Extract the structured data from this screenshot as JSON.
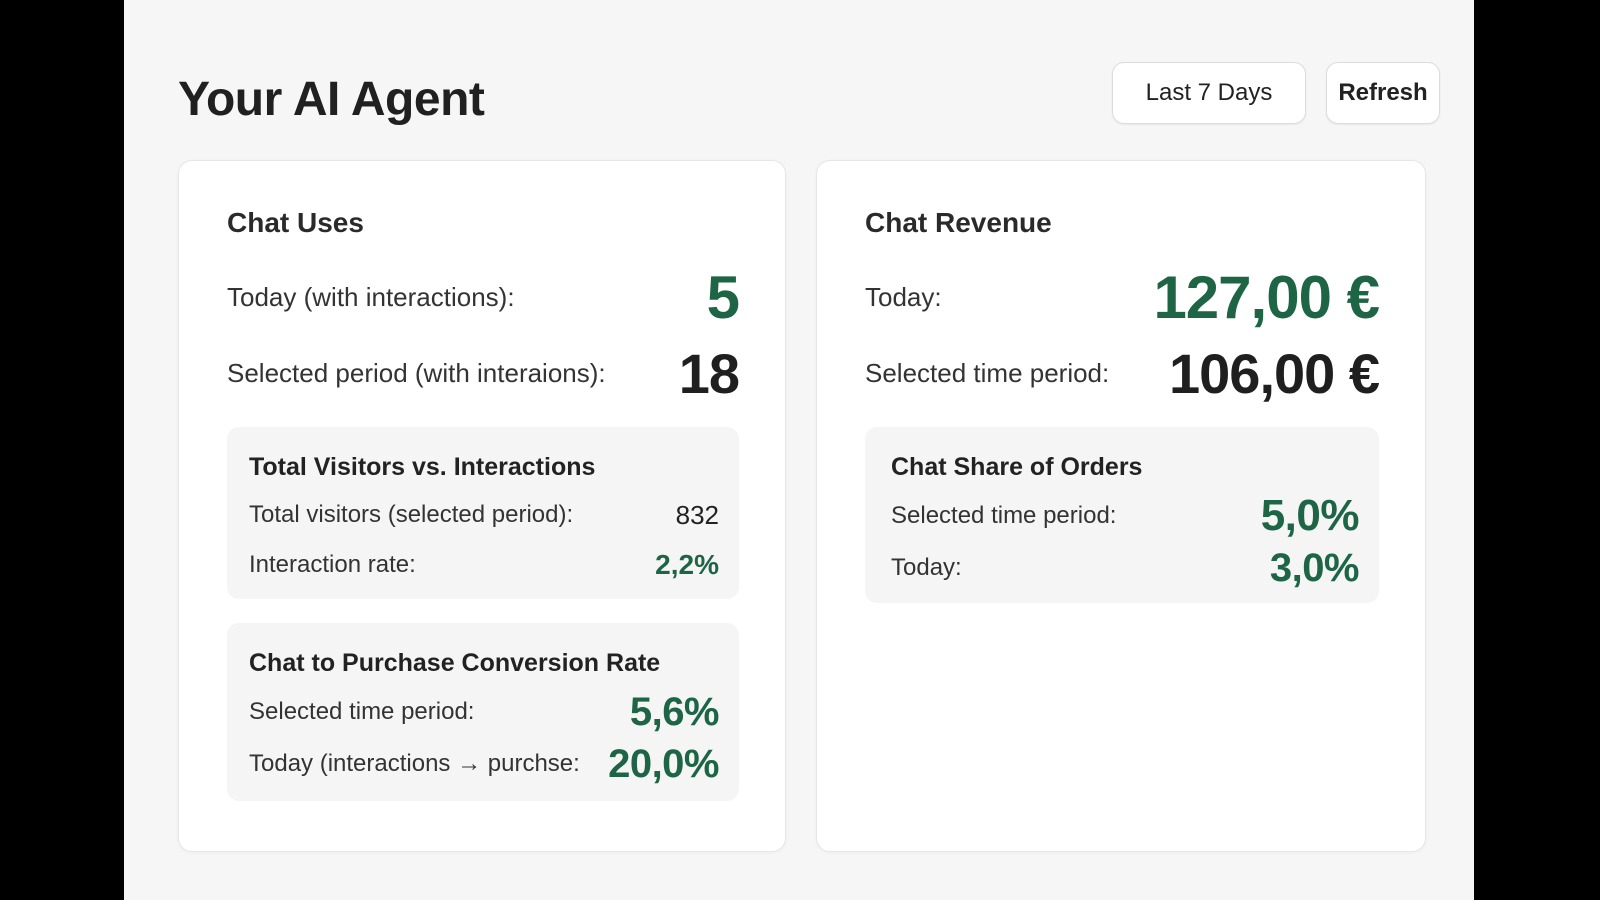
{
  "header": {
    "title": "Your AI Agent",
    "range_label": "Last 7 Days",
    "refresh_label": "Refresh"
  },
  "chat_uses": {
    "title": "Chat Uses",
    "today_label": "Today (with interactions):",
    "today_value": "5",
    "period_label": "Selected period (with interaions):",
    "period_value": "18",
    "visitors_panel": {
      "title": "Total Visitors vs. Interactions",
      "visitors_label": "Total visitors (selected period):",
      "visitors_value": "832",
      "rate_label": "Interaction rate:",
      "rate_value": "2,2%"
    },
    "conversion_panel": {
      "title": "Chat to Purchase Conversion Rate",
      "period_label": "Selected time period:",
      "period_value": "5,6%",
      "today_label": "Today (interactions → purchse:",
      "today_value": "20,0%"
    }
  },
  "chat_revenue": {
    "title": "Chat Revenue",
    "today_label": "Today:",
    "today_value": "127,00 €",
    "period_label": "Selected time period:",
    "period_value": "106,00 €",
    "share_panel": {
      "title": "Chat Share of Orders",
      "period_label": "Selected time period:",
      "period_value": "5,0%",
      "today_label": "Today:",
      "today_value": "3,0%"
    }
  },
  "colors": {
    "accent_green": "#1e6545",
    "background": "#f6f6f6",
    "card": "#ffffff",
    "panel": "#f5f5f5"
  }
}
